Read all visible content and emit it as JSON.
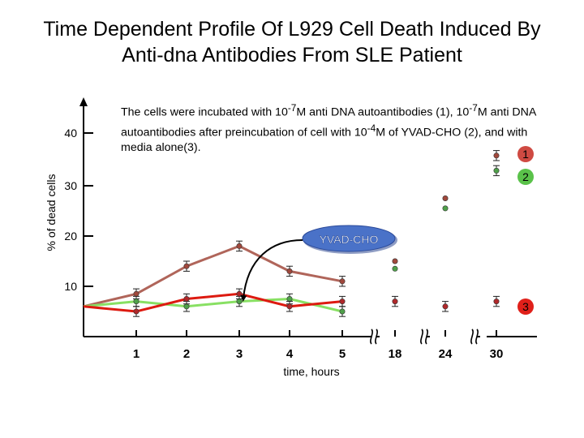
{
  "title_line1": "Time Dependent Profile Of L929 Cell Death Induced  By",
  "title_line2": "Anti-dna Antibodies From SLE Patient",
  "note": {
    "p1": "The cells were incubated with 10",
    "e1": "-7",
    "p2": "M anti DNA autoantibodies (1), 10",
    "e2": "-7",
    "p3": "M anti DNA autoantibodies after preincubation of cell with 10",
    "e3": "-4",
    "p4": "M of YVAD-CHO (2), and with media alone(3)."
  },
  "chart_data": {
    "type": "line",
    "ylabel": "% of dead cells",
    "xlabel": "time, hours",
    "y_ticks": [
      10,
      20,
      30,
      40
    ],
    "x_ticks": [
      "1",
      "2",
      "3",
      "4",
      "5",
      "18",
      "24",
      "30"
    ],
    "ylim": [
      0,
      47
    ],
    "series": [
      {
        "name": "1",
        "color": "#b0655a",
        "marker": "#a0483c",
        "x": [
          0,
          1,
          2,
          3,
          4,
          5,
          18,
          24,
          30
        ],
        "y": [
          6,
          8.5,
          14,
          18,
          13,
          11,
          15,
          27.5,
          36
        ],
        "err": [
          0,
          1,
          1,
          1,
          1,
          1,
          0,
          0,
          1
        ]
      },
      {
        "name": "2",
        "color": "#88e063",
        "marker": "#4fa04a",
        "x": [
          0,
          1,
          2,
          3,
          4,
          5,
          18,
          24,
          30
        ],
        "y": [
          6,
          7,
          6,
          7,
          7.5,
          5,
          13.5,
          25.5,
          33
        ],
        "err": [
          0,
          1,
          1,
          1,
          1,
          1,
          0,
          0,
          1
        ]
      },
      {
        "name": "3",
        "color": "#dd1a10",
        "marker": "#b0282a",
        "x": [
          0,
          1,
          2,
          3,
          4,
          5,
          18,
          24,
          30
        ],
        "y": [
          6,
          5,
          7.5,
          8.5,
          6,
          7,
          7,
          6,
          7
        ],
        "err": [
          0,
          1,
          1,
          1,
          1,
          1,
          1,
          1,
          1
        ]
      }
    ],
    "annotation": {
      "label": "YVAD-CHO",
      "fill": "#4a72c8",
      "arrow_target_x": 3
    },
    "axis_breaks": [
      "5-18",
      "18-24",
      "24-30"
    ],
    "legend_placement": "right",
    "grid": false
  }
}
